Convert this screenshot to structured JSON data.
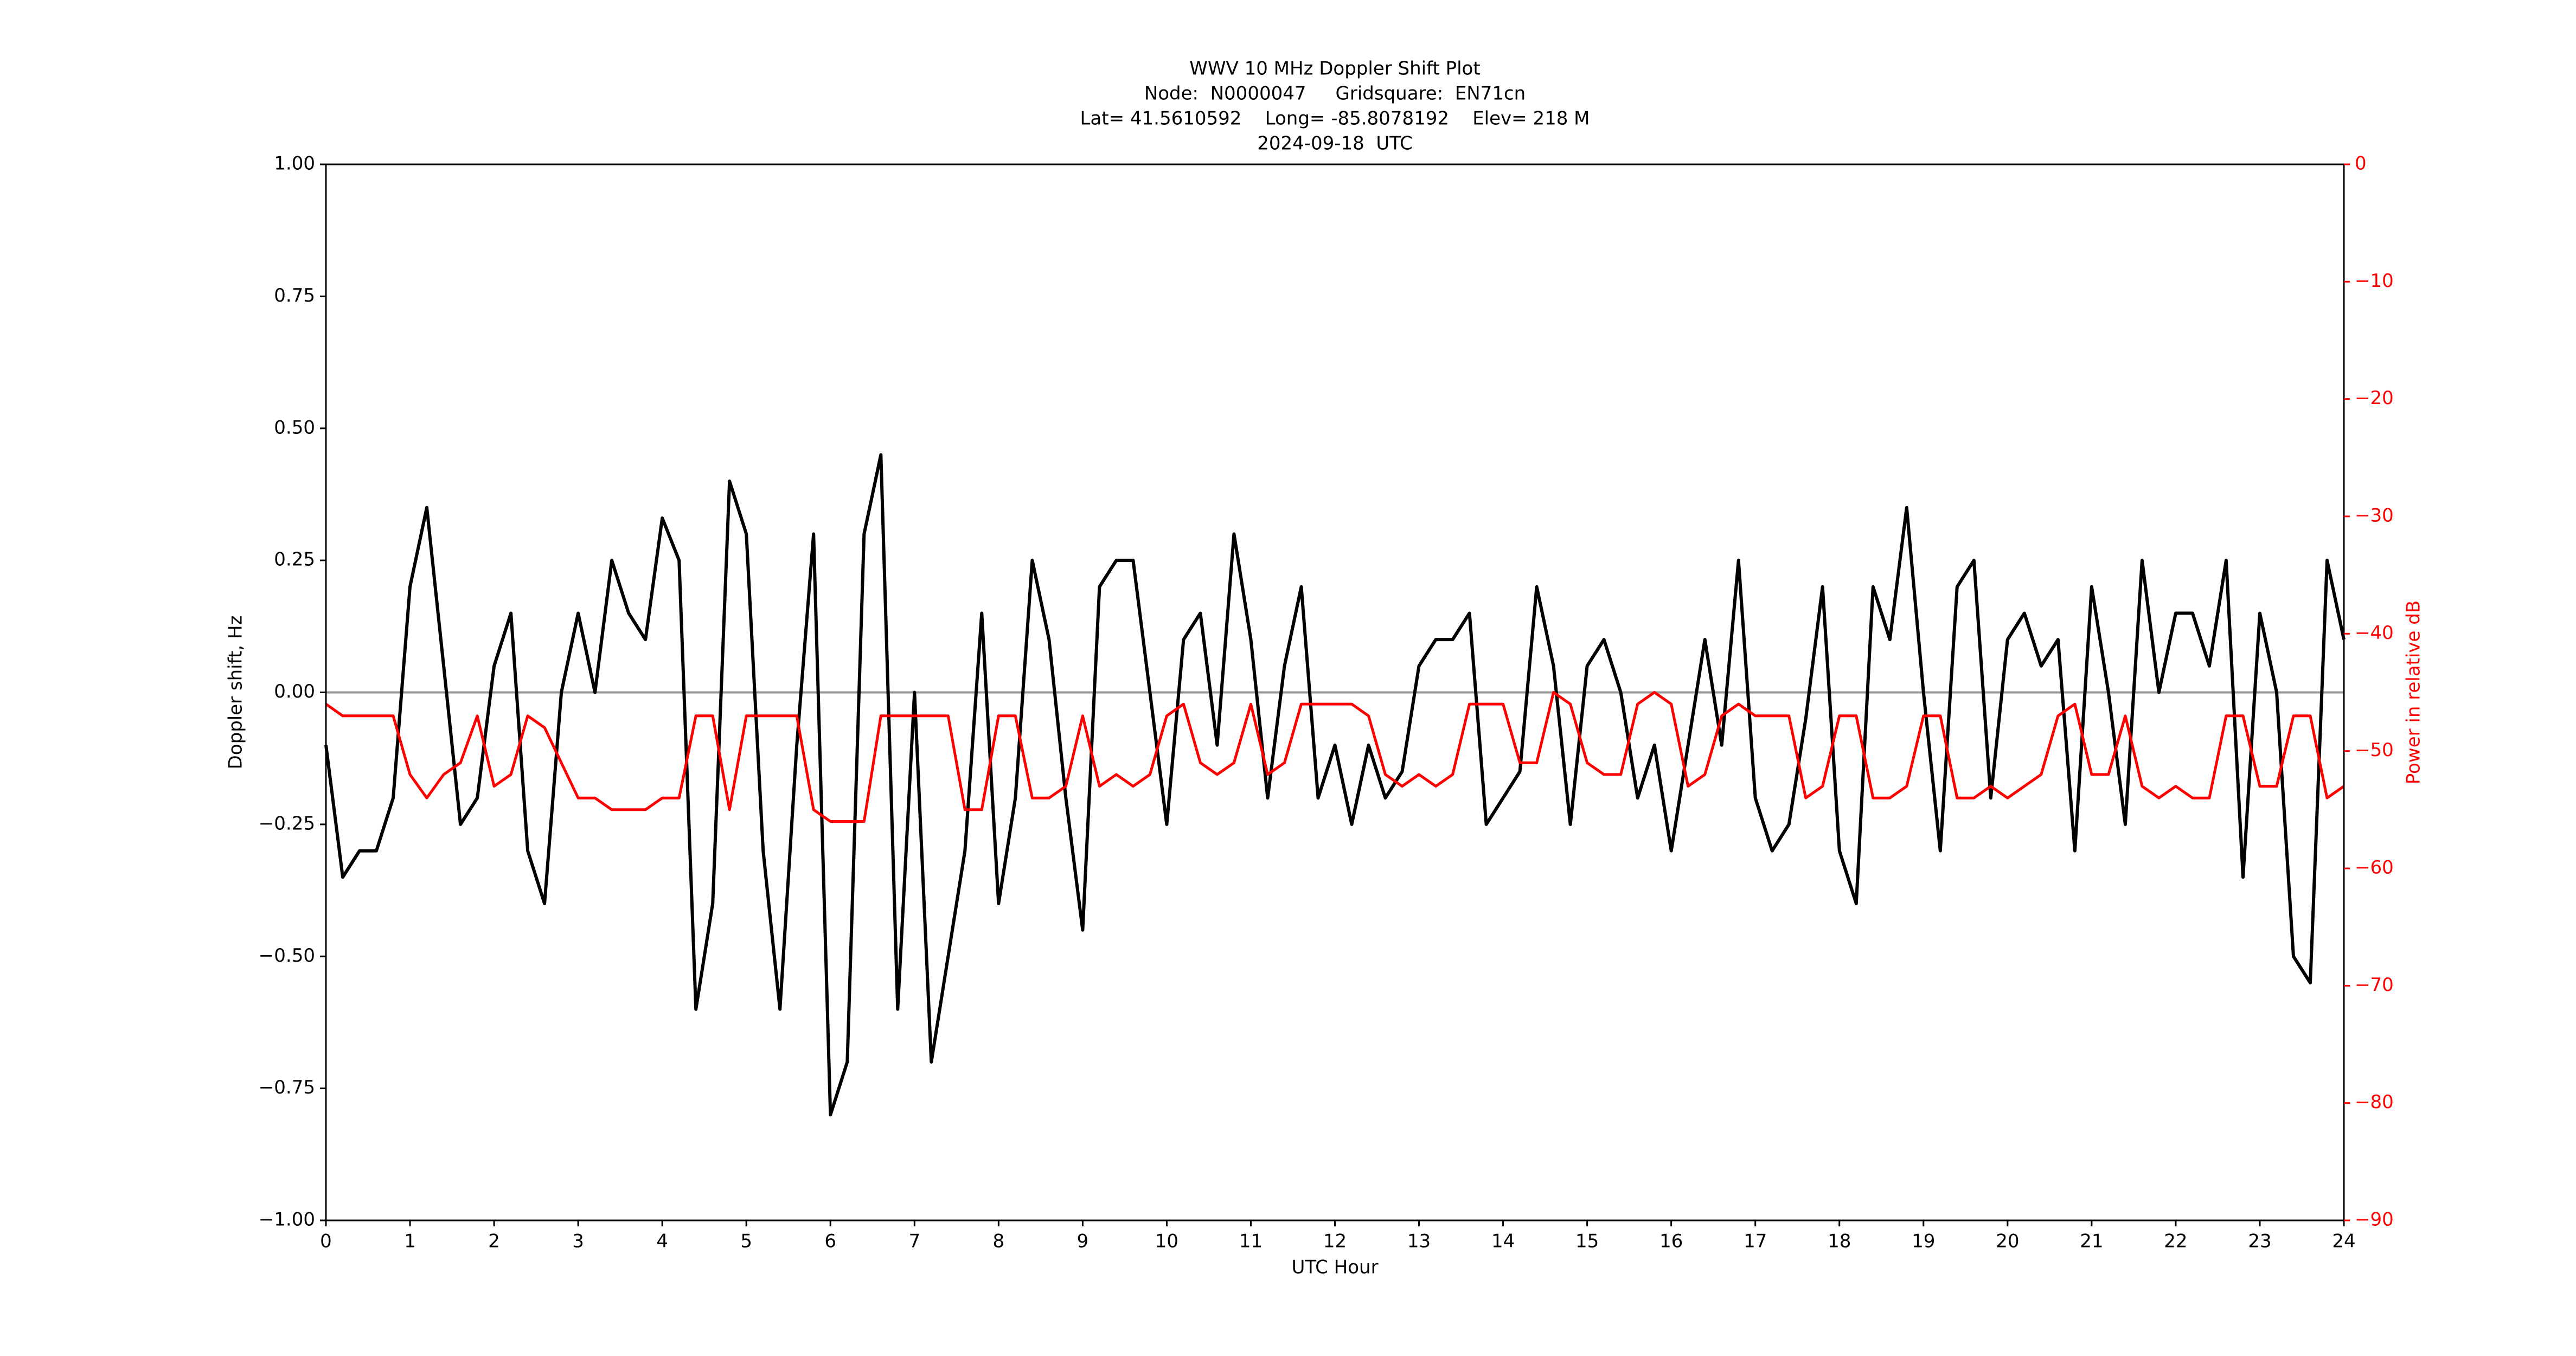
{
  "chart_data": {
    "type": "line",
    "title_lines": [
      "WWV 10 MHz Doppler Shift Plot",
      "Node:  N0000047     Gridsquare:  EN71cn",
      "Lat= 41.5610592    Long= -85.8078192    Elev= 218 M",
      "2024-09-18  UTC"
    ],
    "xlabel": "UTC Hour",
    "ylabel": "Doppler shift, Hz",
    "y2label": "Power in relative dB",
    "xlim": [
      0,
      24
    ],
    "xticks": [
      0,
      1,
      2,
      3,
      4,
      5,
      6,
      7,
      8,
      9,
      10,
      11,
      12,
      13,
      14,
      15,
      16,
      17,
      18,
      19,
      20,
      21,
      22,
      23,
      24
    ],
    "ylim": [
      -1,
      1
    ],
    "yticks": [
      {
        "value": -1,
        "label": "−1.00"
      },
      {
        "value": -0.75,
        "label": "−0.75"
      },
      {
        "value": -0.5,
        "label": "−0.50"
      },
      {
        "value": -0.25,
        "label": "−0.25"
      },
      {
        "value": 0,
        "label": "0.00"
      },
      0.25,
      {
        "value": 0.5,
        "label": "0.50"
      },
      0.75,
      {
        "value": 1,
        "label": "1.00"
      }
    ],
    "y2lim": [
      -90,
      0
    ],
    "y2ticks": [
      {
        "value": -90,
        "label": "−90"
      },
      {
        "value": -80,
        "label": "−80"
      },
      {
        "value": -70,
        "label": "−70"
      },
      {
        "value": -60,
        "label": "−60"
      },
      {
        "value": -50,
        "label": "−50"
      },
      {
        "value": -40,
        "label": "−40"
      },
      {
        "value": -30,
        "label": "−30"
      },
      {
        "value": -20,
        "label": "−20"
      },
      {
        "value": -10,
        "label": "−10"
      },
      0
    ],
    "y2_color": "#ff0000",
    "reference_line": {
      "value": 0,
      "color": "#999999"
    },
    "x": [
      0,
      0.2,
      0.4,
      0.6,
      0.8,
      1,
      1.2,
      1.4,
      1.6,
      1.8,
      2,
      2.2,
      2.4,
      2.6,
      2.8,
      3,
      3.2,
      3.4,
      3.6,
      3.8,
      4,
      4.2,
      4.4,
      4.6,
      4.8,
      5,
      5.2,
      5.4,
      5.6,
      5.8,
      6,
      6.2,
      6.4,
      6.6,
      6.8,
      7,
      7.2,
      7.4,
      7.6,
      7.8,
      8,
      8.2,
      8.4,
      8.6,
      8.8,
      9,
      9.2,
      9.4,
      9.6,
      9.8,
      10,
      10.2,
      10.4,
      10.6,
      10.8,
      11,
      11.2,
      11.4,
      11.6,
      11.8,
      12,
      12.2,
      12.4,
      12.6,
      12.8,
      13,
      13.2,
      13.4,
      13.6,
      13.8,
      14,
      14.2,
      14.4,
      14.6,
      14.8,
      15,
      15.2,
      15.4,
      15.6,
      15.8,
      16,
      16.2,
      16.4,
      16.6,
      16.8,
      17,
      17.2,
      17.4,
      17.6,
      17.8,
      18,
      18.2,
      18.4,
      18.6,
      18.8,
      19,
      19.2,
      19.4,
      19.6,
      19.8,
      20,
      20.2,
      20.4,
      20.6,
      20.8,
      21,
      21.2,
      21.4,
      21.6,
      21.8,
      22,
      22.2,
      22.4,
      22.6,
      22.8,
      23,
      23.2,
      23.4,
      23.6,
      23.8,
      24
    ],
    "series": [
      {
        "color": "#000000",
        "values": [
          -0.1,
          -0.35,
          -0.3,
          -0.3,
          -0.2,
          0.2,
          0.35,
          0.05,
          -0.25,
          -0.2,
          0.05,
          0.15,
          -0.3,
          -0.4,
          0.0,
          0.15,
          0.0,
          0.25,
          0.15,
          0.1,
          0.33,
          0.25,
          -0.6,
          -0.4,
          0.4,
          0.3,
          -0.3,
          -0.6,
          -0.1,
          0.3,
          -0.8,
          -0.7,
          0.3,
          0.45,
          -0.6,
          0.0,
          -0.7,
          -0.5,
          -0.3,
          0.15,
          -0.4,
          -0.2,
          0.25,
          0.1,
          -0.2,
          -0.45,
          0.2,
          0.25,
          0.25,
          0.0,
          -0.25,
          0.1,
          0.15,
          -0.1,
          0.3,
          0.1,
          -0.2,
          0.05,
          0.2,
          -0.2,
          -0.1,
          -0.25,
          -0.1,
          -0.2,
          -0.15,
          0.05,
          0.1,
          0.1,
          0.15,
          -0.25,
          -0.2,
          -0.15,
          0.2,
          0.05,
          -0.25,
          0.05,
          0.1,
          0.0,
          -0.2,
          -0.1,
          -0.3,
          -0.1,
          0.1,
          -0.1,
          0.25,
          -0.2,
          -0.3,
          -0.25,
          -0.05,
          0.2,
          -0.3,
          -0.4,
          0.2,
          0.1,
          0.35,
          0.0,
          -0.3,
          0.2,
          0.25,
          -0.2,
          0.1,
          0.15,
          0.05,
          0.1,
          -0.3,
          0.2,
          0.0,
          -0.25,
          0.25,
          0.0,
          0.15,
          0.15,
          0.05,
          0.25,
          -0.35,
          0.15,
          0.0,
          -0.5,
          -0.55,
          0.25,
          0.1
        ]
      },
      {
        "color": "#ff0000",
        "axis": "y2",
        "values": [
          -46,
          -47,
          -47,
          -47,
          -47,
          -52,
          -54,
          -52,
          -51,
          -47,
          -53,
          -52,
          -47,
          -48,
          -51,
          -54,
          -54,
          -55,
          -55,
          -55,
          -54,
          -54,
          -47,
          -47,
          -55,
          -47,
          -47,
          -47,
          -47,
          -55,
          -56,
          -56,
          -56,
          -47,
          -47,
          -47,
          -47,
          -47,
          -55,
          -55,
          -47,
          -47,
          -54,
          -54,
          -53,
          -47,
          -53,
          -52,
          -53,
          -52,
          -47,
          -46,
          -51,
          -52,
          -51,
          -46,
          -52,
          -51,
          -46,
          -46,
          -46,
          -46,
          -47,
          -52,
          -53,
          -52,
          -53,
          -52,
          -46,
          -46,
          -46,
          -51,
          -51,
          -45,
          -46,
          -51,
          -52,
          -52,
          -46,
          -45,
          -46,
          -53,
          -52,
          -47,
          -46,
          -47,
          -47,
          -47,
          -54,
          -53,
          -47,
          -47,
          -54,
          -54,
          -53,
          -47,
          -47,
          -54,
          -54,
          -53,
          -54,
          -53,
          -52,
          -47,
          -46,
          -52,
          -52,
          -47,
          -53,
          -54,
          -53,
          -54,
          -54,
          -47,
          -47,
          -53,
          -53,
          -47,
          -47,
          -54,
          -53
        ]
      }
    ]
  }
}
